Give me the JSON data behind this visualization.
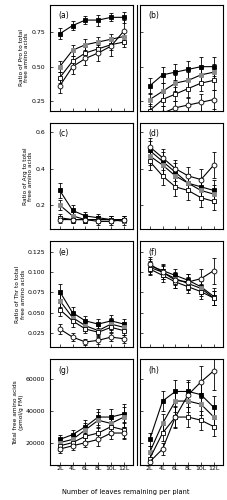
{
  "x": [
    2,
    4,
    6,
    8,
    10,
    12
  ],
  "x_labels": [
    "2L",
    "4L",
    "6L",
    "8L",
    "10L",
    "12L"
  ],
  "panel_a": {
    "label": "(a)",
    "series": [
      {
        "y": [
          0.74,
          0.8,
          0.84,
          0.84,
          0.86,
          0.86
        ],
        "yerr": [
          0.04,
          0.03,
          0.03,
          0.04,
          0.03,
          0.04
        ],
        "marker": "s",
        "mfc": "black",
        "mec": "black"
      },
      {
        "y": [
          0.5,
          0.62,
          0.66,
          0.68,
          0.7,
          0.72
        ],
        "yerr": [
          0.04,
          0.04,
          0.04,
          0.04,
          0.04,
          0.04
        ],
        "marker": "s",
        "mfc": "#888888",
        "mec": "#888888"
      },
      {
        "y": [
          0.42,
          0.54,
          0.6,
          0.63,
          0.66,
          0.68
        ],
        "yerr": [
          0.04,
          0.04,
          0.04,
          0.04,
          0.04,
          0.04
        ],
        "marker": "s",
        "mfc": "white",
        "mec": "black"
      },
      {
        "y": [
          0.36,
          0.5,
          0.56,
          0.6,
          0.65,
          0.76
        ],
        "yerr": [
          0.05,
          0.05,
          0.05,
          0.06,
          0.07,
          0.08
        ],
        "marker": "o",
        "mfc": "white",
        "mec": "black"
      }
    ],
    "ylim": [
      0.18,
      0.95
    ],
    "yticks": [
      0.25,
      0.5,
      0.75
    ],
    "ylabel": "Ratio of Pro to total\nfree amino acids",
    "show_yticks": true
  },
  "panel_b": {
    "label": "(b)",
    "series": [
      {
        "y": [
          0.36,
          0.44,
          0.46,
          0.48,
          0.5,
          0.5
        ],
        "yerr": [
          0.06,
          0.06,
          0.06,
          0.06,
          0.07,
          0.07
        ],
        "marker": "s",
        "mfc": "black",
        "mec": "black"
      },
      {
        "y": [
          0.26,
          0.32,
          0.38,
          0.4,
          0.44,
          0.46
        ],
        "yerr": [
          0.05,
          0.06,
          0.06,
          0.06,
          0.06,
          0.06
        ],
        "marker": "s",
        "mfc": "#888888",
        "mec": "#888888"
      },
      {
        "y": [
          0.18,
          0.26,
          0.3,
          0.34,
          0.38,
          0.4
        ],
        "yerr": [
          0.05,
          0.05,
          0.05,
          0.06,
          0.06,
          0.07
        ],
        "marker": "s",
        "mfc": "white",
        "mec": "black"
      },
      {
        "y": [
          0.1,
          0.16,
          0.2,
          0.22,
          0.24,
          0.26
        ],
        "yerr": [
          0.04,
          0.05,
          0.05,
          0.05,
          0.06,
          0.07
        ],
        "marker": "o",
        "mfc": "white",
        "mec": "black"
      }
    ],
    "ylim": [
      0.18,
      0.95
    ],
    "yticks": [
      0.25,
      0.5,
      0.75
    ],
    "ylabel": "",
    "show_yticks": false
  },
  "panel_c": {
    "label": "(c)",
    "series": [
      {
        "y": [
          0.28,
          0.17,
          0.14,
          0.13,
          0.12,
          0.12
        ],
        "yerr": [
          0.04,
          0.03,
          0.02,
          0.02,
          0.02,
          0.02
        ],
        "marker": "s",
        "mfc": "black",
        "mec": "black"
      },
      {
        "y": [
          0.2,
          0.14,
          0.12,
          0.12,
          0.12,
          0.11
        ],
        "yerr": [
          0.03,
          0.02,
          0.02,
          0.02,
          0.02,
          0.02
        ],
        "marker": "s",
        "mfc": "#888888",
        "mec": "#888888"
      },
      {
        "y": [
          0.13,
          0.12,
          0.12,
          0.12,
          0.12,
          0.12
        ],
        "yerr": [
          0.02,
          0.02,
          0.02,
          0.02,
          0.02,
          0.02
        ],
        "marker": "s",
        "mfc": "white",
        "mec": "black"
      },
      {
        "y": [
          0.12,
          0.12,
          0.12,
          0.11,
          0.11,
          0.12
        ],
        "yerr": [
          0.02,
          0.02,
          0.02,
          0.02,
          0.02,
          0.02
        ],
        "marker": "o",
        "mfc": "white",
        "mec": "black"
      }
    ],
    "ylim": [
      0.07,
      0.65
    ],
    "yticks": [
      0.2,
      0.4,
      0.6
    ],
    "ylabel": "Ratio of Arg to total\nfree amino acids",
    "show_yticks": true
  },
  "panel_d": {
    "label": "(d)",
    "series": [
      {
        "y": [
          0.5,
          0.44,
          0.38,
          0.32,
          0.3,
          0.28
        ],
        "yerr": [
          0.05,
          0.05,
          0.05,
          0.05,
          0.05,
          0.06
        ],
        "marker": "s",
        "mfc": "black",
        "mec": "black"
      },
      {
        "y": [
          0.47,
          0.42,
          0.36,
          0.32,
          0.28,
          0.26
        ],
        "yerr": [
          0.05,
          0.05,
          0.05,
          0.05,
          0.05,
          0.05
        ],
        "marker": "s",
        "mfc": "#888888",
        "mec": "#888888"
      },
      {
        "y": [
          0.52,
          0.46,
          0.4,
          0.36,
          0.34,
          0.42
        ],
        "yerr": [
          0.05,
          0.05,
          0.05,
          0.05,
          0.06,
          0.07
        ],
        "marker": "o",
        "mfc": "white",
        "mec": "black"
      },
      {
        "y": [
          0.44,
          0.36,
          0.3,
          0.28,
          0.24,
          0.22
        ],
        "yerr": [
          0.05,
          0.05,
          0.05,
          0.05,
          0.05,
          0.05
        ],
        "marker": "s",
        "mfc": "white",
        "mec": "black"
      }
    ],
    "ylim": [
      0.07,
      0.65
    ],
    "yticks": [
      0.2,
      0.4,
      0.6
    ],
    "ylabel": "",
    "show_yticks": false
  },
  "panel_e": {
    "label": "(e)",
    "series": [
      {
        "y": [
          0.076,
          0.05,
          0.04,
          0.036,
          0.04,
          0.036
        ],
        "yerr": [
          0.009,
          0.007,
          0.006,
          0.006,
          0.007,
          0.006
        ],
        "marker": "s",
        "mfc": "black",
        "mec": "black"
      },
      {
        "y": [
          0.065,
          0.044,
          0.034,
          0.028,
          0.036,
          0.032
        ],
        "yerr": [
          0.008,
          0.007,
          0.006,
          0.006,
          0.007,
          0.006
        ],
        "marker": "s",
        "mfc": "#888888",
        "mec": "#888888"
      },
      {
        "y": [
          0.054,
          0.04,
          0.03,
          0.026,
          0.032,
          0.028
        ],
        "yerr": [
          0.008,
          0.007,
          0.005,
          0.005,
          0.006,
          0.006
        ],
        "marker": "s",
        "mfc": "white",
        "mec": "black"
      },
      {
        "y": [
          0.03,
          0.02,
          0.014,
          0.016,
          0.02,
          0.018
        ],
        "yerr": [
          0.006,
          0.005,
          0.004,
          0.004,
          0.005,
          0.005
        ],
        "marker": "o",
        "mfc": "white",
        "mec": "black"
      }
    ],
    "ylim": [
      0.008,
      0.138
    ],
    "yticks": [
      0.025,
      0.05,
      0.075,
      0.1,
      0.125
    ],
    "ylabel": "Ratio of Thr to total\nfree amino acids",
    "show_yticks": true
  },
  "panel_f": {
    "label": "(f)",
    "series": [
      {
        "y": [
          0.108,
          0.102,
          0.096,
          0.09,
          0.082,
          0.07
        ],
        "yerr": [
          0.008,
          0.008,
          0.008,
          0.008,
          0.009,
          0.01
        ],
        "marker": "s",
        "mfc": "black",
        "mec": "black"
      },
      {
        "y": [
          0.106,
          0.1,
          0.092,
          0.086,
          0.08,
          0.068
        ],
        "yerr": [
          0.008,
          0.008,
          0.008,
          0.008,
          0.009,
          0.009
        ],
        "marker": "s",
        "mfc": "#888888",
        "mec": "#888888"
      },
      {
        "y": [
          0.104,
          0.096,
          0.088,
          0.082,
          0.076,
          0.068
        ],
        "yerr": [
          0.008,
          0.008,
          0.008,
          0.008,
          0.009,
          0.009
        ],
        "marker": "s",
        "mfc": "white",
        "mec": "black"
      },
      {
        "y": [
          0.11,
          0.1,
          0.09,
          0.088,
          0.092,
          0.102
        ],
        "yerr": [
          0.009,
          0.009,
          0.009,
          0.01,
          0.012,
          0.016
        ],
        "marker": "o",
        "mfc": "white",
        "mec": "black"
      }
    ],
    "ylim": [
      0.008,
      0.138
    ],
    "yticks": [
      0.025,
      0.05,
      0.075,
      0.1,
      0.125
    ],
    "ylabel": "",
    "show_yticks": false
  },
  "panel_g": {
    "label": "(g)",
    "series": [
      {
        "y": [
          22000,
          25000,
          30000,
          36000,
          36000,
          38000
        ],
        "yerr": [
          3000,
          3000,
          4000,
          5000,
          5000,
          6000
        ],
        "marker": "s",
        "mfc": "black",
        "mec": "black"
      },
      {
        "y": [
          20000,
          22000,
          28000,
          34000,
          32000,
          36000
        ],
        "yerr": [
          3000,
          3000,
          4000,
          5000,
          5000,
          6000
        ],
        "marker": "s",
        "mfc": "#888888",
        "mec": "#888888"
      },
      {
        "y": [
          18000,
          20000,
          24000,
          26000,
          30000,
          28000
        ],
        "yerr": [
          3000,
          3000,
          3000,
          4000,
          5000,
          5000
        ],
        "marker": "s",
        "mfc": "white",
        "mec": "black"
      },
      {
        "y": [
          16000,
          18000,
          20000,
          22000,
          26000,
          26000
        ],
        "yerr": [
          2500,
          2500,
          3000,
          4000,
          4000,
          4000
        ],
        "marker": "o",
        "mfc": "white",
        "mec": "black"
      }
    ],
    "ylim": [
      6000,
      72000
    ],
    "yticks": [
      20000,
      40000,
      60000
    ],
    "ylabel": "Total free amino acids\n(pmol/g FM)",
    "show_yticks": true
  },
  "panel_h": {
    "label": "(h)",
    "series": [
      {
        "y": [
          22000,
          46000,
          52000,
          52000,
          50000,
          42000
        ],
        "yerr": [
          4000,
          6000,
          7000,
          7000,
          7000,
          7000
        ],
        "marker": "s",
        "mfc": "black",
        "mec": "black"
      },
      {
        "y": [
          14000,
          32000,
          46000,
          46000,
          44000,
          36000
        ],
        "yerr": [
          4000,
          6000,
          7000,
          7000,
          7000,
          7000
        ],
        "marker": "s",
        "mfc": "#888888",
        "mec": "#888888"
      },
      {
        "y": [
          10000,
          26000,
          36000,
          36000,
          34000,
          30000
        ],
        "yerr": [
          3000,
          5000,
          6000,
          6000,
          6000,
          6000
        ],
        "marker": "s",
        "mfc": "white",
        "mec": "black"
      },
      {
        "y": [
          8000,
          16000,
          36000,
          50000,
          58000,
          65000
        ],
        "yerr": [
          3000,
          4000,
          7000,
          8000,
          10000,
          12000
        ],
        "marker": "o",
        "mfc": "white",
        "mec": "black"
      }
    ],
    "ylim": [
      6000,
      72000
    ],
    "yticks": [
      20000,
      40000,
      60000
    ],
    "ylabel": "",
    "show_yticks": false
  },
  "line_color": "black",
  "markersize": 3.5,
  "linewidth": 0.8,
  "elinewidth": 0.6,
  "capsize": 1.2
}
